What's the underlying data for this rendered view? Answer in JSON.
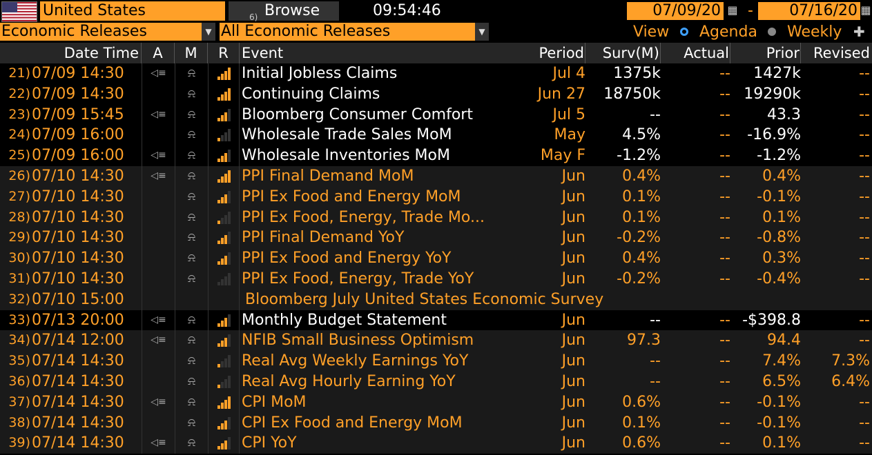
{
  "toolbar": {
    "country": "United States",
    "browse_icon": "6)",
    "browse_label": "Browse",
    "time": "09:54:46",
    "date_from": "07/09/20",
    "date_to": "07/16/20",
    "date_separator": "-"
  },
  "filters": {
    "category": "Economic Releases",
    "scope": "All Economic Releases",
    "view_label": "View",
    "view_options": [
      {
        "label": "Agenda",
        "selected": true
      },
      {
        "label": "Weekly",
        "selected": false
      }
    ]
  },
  "columns": {
    "datetime": "Date Time",
    "a": "A",
    "m": "M",
    "r": "R",
    "event": "Event",
    "period": "Period",
    "survey": "Surv(M)",
    "actual": "Actual",
    "prior": "Prior",
    "revised": "Revised"
  },
  "rows": [
    {
      "num": "21)",
      "datetime": "07/09 14:30",
      "alert": true,
      "relevance": 4,
      "event": "Initial Jobless Claims",
      "period": "Jul 4",
      "survey": "1375k",
      "actual": "--",
      "prior": "1427k",
      "revised": "--",
      "highlight": true
    },
    {
      "num": "22)",
      "datetime": "07/09 14:30",
      "alert": false,
      "relevance": 4,
      "event": "Continuing Claims",
      "period": "Jun 27",
      "survey": "18750k",
      "actual": "--",
      "prior": "19290k",
      "revised": "--",
      "highlight": true
    },
    {
      "num": "23)",
      "datetime": "07/09 15:45",
      "alert": true,
      "relevance": 3,
      "event": "Bloomberg Consumer Comfort",
      "period": "Jul 5",
      "survey": "--",
      "actual": "--",
      "prior": "43.3",
      "revised": "--",
      "highlight": true
    },
    {
      "num": "24)",
      "datetime": "07/09 16:00",
      "alert": false,
      "relevance": 1,
      "event": "Wholesale Trade Sales MoM",
      "period": "May",
      "survey": "4.5%",
      "actual": "--",
      "prior": "-16.9%",
      "revised": "--",
      "highlight": true
    },
    {
      "num": "25)",
      "datetime": "07/09 16:00",
      "alert": true,
      "relevance": 3,
      "event": "Wholesale Inventories MoM",
      "period": "May F",
      "survey": "-1.2%",
      "actual": "--",
      "prior": "-1.2%",
      "revised": "--",
      "highlight": true
    },
    {
      "num": "26)",
      "datetime": "07/10 14:30",
      "alert": true,
      "relevance": 4,
      "event": "PPI Final Demand MoM",
      "period": "Jun",
      "survey": "0.4%",
      "actual": "--",
      "prior": "0.4%",
      "revised": "--",
      "highlight": false
    },
    {
      "num": "27)",
      "datetime": "07/10 14:30",
      "alert": false,
      "relevance": 3,
      "event": "PPI Ex Food and Energy MoM",
      "period": "Jun",
      "survey": "0.1%",
      "actual": "--",
      "prior": "-0.1%",
      "revised": "--",
      "highlight": false
    },
    {
      "num": "28)",
      "datetime": "07/10 14:30",
      "alert": false,
      "relevance": 1,
      "event": "PPI Ex Food, Energy, Trade Mo...",
      "period": "Jun",
      "survey": "0.1%",
      "actual": "--",
      "prior": "0.1%",
      "revised": "--",
      "highlight": false
    },
    {
      "num": "29)",
      "datetime": "07/10 14:30",
      "alert": false,
      "relevance": 3,
      "event": "PPI Final Demand YoY",
      "period": "Jun",
      "survey": "-0.2%",
      "actual": "--",
      "prior": "-0.8%",
      "revised": "--",
      "highlight": false
    },
    {
      "num": "30)",
      "datetime": "07/10 14:30",
      "alert": false,
      "relevance": 3,
      "event": "PPI Ex Food and Energy YoY",
      "period": "Jun",
      "survey": "0.4%",
      "actual": "--",
      "prior": "0.3%",
      "revised": "--",
      "highlight": false
    },
    {
      "num": "31)",
      "datetime": "07/10 14:30",
      "alert": false,
      "relevance": 0,
      "event": "PPI Ex Food, Energy, Trade YoY",
      "period": "Jun",
      "survey": "-0.2%",
      "actual": "--",
      "prior": "-0.4%",
      "revised": "--",
      "highlight": false
    },
    {
      "num": "32)",
      "datetime": "07/10 15:00",
      "span": "Bloomberg July United States Economic Survey",
      "highlight": false
    },
    {
      "num": "33)",
      "datetime": "07/13 20:00",
      "alert": true,
      "relevance": 3,
      "event": "Monthly Budget Statement",
      "period": "Jun",
      "survey": "--",
      "actual": "--",
      "prior": "-$398.8",
      "revised": "--",
      "highlight": true
    },
    {
      "num": "34)",
      "datetime": "07/14 12:00",
      "alert": true,
      "relevance": 3,
      "event": "NFIB Small Business Optimism",
      "period": "Jun",
      "survey": "97.3",
      "actual": "--",
      "prior": "94.4",
      "revised": "--",
      "highlight": false
    },
    {
      "num": "35)",
      "datetime": "07/14 14:30",
      "alert": false,
      "relevance": 1,
      "event": "Real Avg Weekly Earnings YoY",
      "period": "Jun",
      "survey": "--",
      "actual": "--",
      "prior": "7.4%",
      "revised": "7.3%",
      "highlight": false
    },
    {
      "num": "36)",
      "datetime": "07/14 14:30",
      "alert": false,
      "relevance": 1,
      "event": "Real Avg Hourly Earning YoY",
      "period": "Jun",
      "survey": "--",
      "actual": "--",
      "prior": "6.5%",
      "revised": "6.4%",
      "highlight": false
    },
    {
      "num": "37)",
      "datetime": "07/14 14:30",
      "alert": true,
      "relevance": 4,
      "event": "CPI MoM",
      "period": "Jun",
      "survey": "0.6%",
      "actual": "--",
      "prior": "-0.1%",
      "revised": "--",
      "highlight": false
    },
    {
      "num": "38)",
      "datetime": "07/14 14:30",
      "alert": false,
      "relevance": 3,
      "event": "CPI Ex Food and Energy MoM",
      "period": "Jun",
      "survey": "0.1%",
      "actual": "--",
      "prior": "-0.1%",
      "revised": "--",
      "highlight": false
    },
    {
      "num": "39)",
      "datetime": "07/14 14:30",
      "alert": true,
      "relevance": 3,
      "event": "CPI YoY",
      "period": "Jun",
      "survey": "0.6%",
      "actual": "--",
      "prior": "0.1%",
      "revised": "--",
      "highlight": false
    }
  ],
  "colors": {
    "accent": "#ffa028",
    "highlight_text": "#ffffff",
    "background": "#000000",
    "alt_row": "#1a1a1a"
  },
  "icons": {
    "alert": "speaker-icon",
    "monitor": "bell-icon",
    "relevance": "signal-bars-icon",
    "calendar": "calendar-icon",
    "zoom": "zoom-icon"
  }
}
